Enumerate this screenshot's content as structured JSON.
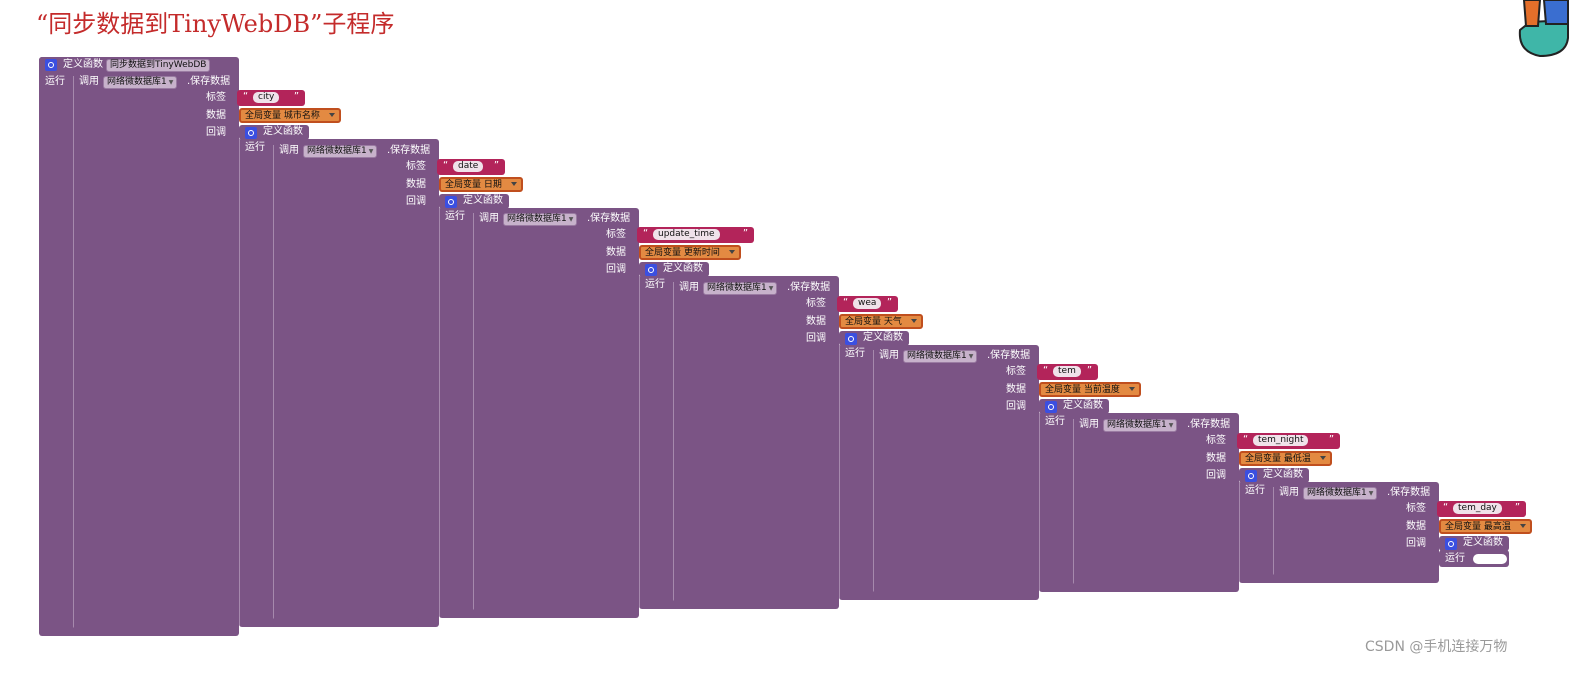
{
  "title": "“同步数据到TinyWebDB”子程序",
  "procedure": {
    "keyword": "定义函数",
    "name": "同步数据到TinyWebDB",
    "run_label": "运行"
  },
  "call": {
    "keyword": "调用",
    "component": "网络微数据库1",
    "method": ".保存数据"
  },
  "params": {
    "tag": "标签",
    "value": "数据",
    "callback": "回调"
  },
  "lambda": {
    "keyword": "定义函数",
    "run_label": "运行"
  },
  "levels": [
    {
      "tag": "city",
      "var_prefix": "全局变量",
      "var_name": "城市名称"
    },
    {
      "tag": "date",
      "var_prefix": "全局变量",
      "var_name": "日期"
    },
    {
      "tag": "update_time",
      "var_prefix": "全局变量",
      "var_name": "更新时间"
    },
    {
      "tag": "wea",
      "var_prefix": "全局变量",
      "var_name": "天气"
    },
    {
      "tag": "tem",
      "var_prefix": "全局变量",
      "var_name": "当前温度"
    },
    {
      "tag": "tem_night",
      "var_prefix": "全局变量",
      "var_name": "最低温"
    },
    {
      "tag": "tem_day",
      "var_prefix": "全局变量",
      "var_name": "最高温"
    }
  ],
  "watermark": "CSDN @手机连接万物",
  "colors": {
    "procedure": "#7b5485",
    "text": "#b3245a",
    "variable": "#e38a42",
    "title": "#c42b2b",
    "gear": "#3b4fe0"
  }
}
